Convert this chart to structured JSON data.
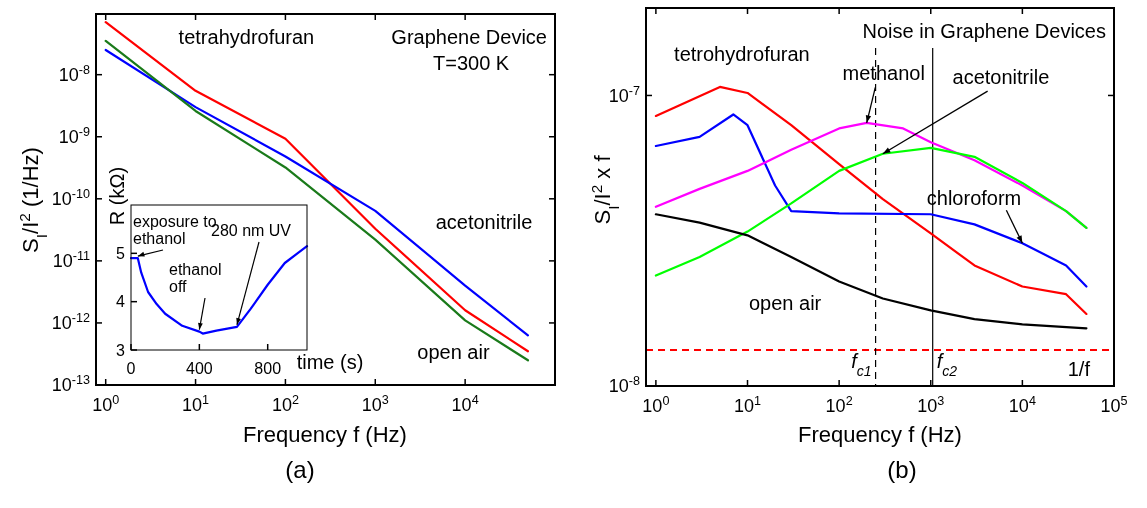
{
  "chart_data": [
    {
      "type": "line",
      "title": "Graphene Device",
      "subtitle": "T=300 K",
      "xlabel": "Frequency f (Hz)",
      "ylabel": "S$_{I}$/I$^{2}$  (1/Hz)",
      "log": "xy",
      "grid": false,
      "marker": "none",
      "line_style": "solid",
      "xlim": [
        0.78,
        100000
      ],
      "ylim": [
        1e-13,
        9.5e-08
      ],
      "xticks": [
        {
          "value": 1,
          "label": "10$^{0}$"
        },
        {
          "value": 10,
          "label": "10$^{1}$"
        },
        {
          "value": 100,
          "label": "10$^{2}$"
        },
        {
          "value": 1000,
          "label": "10$^{3}$"
        },
        {
          "value": 10000,
          "label": "10$^{4}$"
        }
      ],
      "yticks": [
        {
          "value": 1e-13,
          "label": "10$^{-13}$"
        },
        {
          "value": 1e-12,
          "label": "10$^{-12}$"
        },
        {
          "value": 1e-11,
          "label": "10$^{-11}$"
        },
        {
          "value": 1e-10,
          "label": "10$^{-10}$"
        },
        {
          "value": 1e-09,
          "label": "10$^{-9}$"
        },
        {
          "value": 1e-08,
          "label": "10$^{-8}$"
        }
      ],
      "x": [
        1,
        10,
        100,
        1000,
        10000,
        50000
      ],
      "series": [
        {
          "name": "tetrahydrofuran",
          "color": "#ff0000",
          "values": [
            7e-08,
            5.5e-09,
            9.3e-10,
            3.3e-11,
            1.6e-12,
            3.5e-13
          ]
        },
        {
          "name": "acetonitrile",
          "color": "#0000ff",
          "values": [
            2.5e-08,
            3e-09,
            4.8e-10,
            6.4e-11,
            4e-12,
            6.3e-13
          ]
        },
        {
          "name": "open air",
          "color": "#1a7a1a",
          "values": [
            3.5e-08,
            2.6e-09,
            3.2e-10,
            2.2e-11,
            1.1e-12,
            2.5e-13
          ]
        }
      ],
      "annotations": [
        "(a)"
      ]
    },
    {
      "type": "line",
      "xlabel": "time (s)",
      "ylabel": "R (kΩ)",
      "grid": false,
      "marker": "none",
      "line_style": "solid",
      "xlim": [
        0,
        1030
      ],
      "ylim": [
        3,
        6
      ],
      "xticks": [
        0,
        400,
        800
      ],
      "yticks": [
        3,
        4,
        5
      ],
      "x": [
        0,
        40,
        60,
        100,
        150,
        200,
        300,
        400,
        420,
        500,
        620,
        700,
        800,
        900,
        1030
      ],
      "series": [
        {
          "color": "#0000ff",
          "values": [
            4.9,
            4.9,
            4.6,
            4.2,
            3.95,
            3.75,
            3.5,
            3.38,
            3.34,
            3.4,
            3.48,
            3.85,
            4.35,
            4.8,
            5.15
          ]
        }
      ],
      "annotations": [
        {
          "text": "exposure to\nethanol",
          "x": 40,
          "y": 4.9
        },
        {
          "text": "ethanol\noff",
          "x": 400,
          "y": 3.38
        },
        {
          "text": "280 nm UV",
          "x": 620,
          "y": 3.48
        }
      ]
    },
    {
      "type": "line",
      "title": "Noise in Graphene Devices",
      "xlabel": "Frequency f (Hz)",
      "ylabel": "S$_{I}$/I$^{2}$ x f",
      "log": "xy",
      "grid": false,
      "marker": "none",
      "line_style": "solid",
      "xlim": [
        0.78,
        100000
      ],
      "ylim": [
        1e-08,
        2e-07
      ],
      "xticks": [
        {
          "value": 1,
          "label": "10$^{0}$"
        },
        {
          "value": 10,
          "label": "10$^{1}$"
        },
        {
          "value": 100,
          "label": "10$^{2}$"
        },
        {
          "value": 1000,
          "label": "10$^{3}$"
        },
        {
          "value": 10000,
          "label": "10$^{4}$"
        },
        {
          "value": 100000,
          "label": "10$^{5}$"
        }
      ],
      "yticks": [
        {
          "value": 1e-08,
          "label": "10$^{-8}$"
        },
        {
          "value": 1e-07,
          "label": "10$^{-7}$"
        }
      ],
      "series": [
        {
          "name": "tetrohydrofuran",
          "color": "#ff0000",
          "x": [
            1,
            5,
            10,
            30,
            100,
            300,
            1000,
            3000,
            10000,
            30000,
            50000
          ],
          "values": [
            8.5e-08,
            1.07e-07,
            1.02e-07,
            7.9e-08,
            5.8e-08,
            4.4e-08,
            3.35e-08,
            2.6e-08,
            2.2e-08,
            2.07e-08,
            1.77e-08
          ]
        },
        {
          "name": "chloroform",
          "color": "#0000ff",
          "x": [
            1,
            3,
            7,
            10,
            20,
            30,
            100,
            1000,
            3000,
            10000,
            30000,
            50000
          ],
          "values": [
            6.7e-08,
            7.2e-08,
            8.6e-08,
            7.9e-08,
            4.9e-08,
            4e-08,
            3.93e-08,
            3.9e-08,
            3.6e-08,
            3.1e-08,
            2.6e-08,
            2.2e-08
          ]
        },
        {
          "name": "methanol",
          "color": "#ff00ff",
          "x": [
            1,
            3,
            10,
            30,
            100,
            200,
            500,
            1000,
            3000,
            10000,
            30000,
            50000
          ],
          "values": [
            4.14e-08,
            4.77e-08,
            5.5e-08,
            6.5e-08,
            7.7e-08,
            8.05e-08,
            7.7e-08,
            6.9e-08,
            5.98e-08,
            4.9e-08,
            4e-08,
            3.5e-08
          ]
        },
        {
          "name": "acetonitrile",
          "color": "#00ff00",
          "x": [
            1,
            3,
            10,
            30,
            100,
            300,
            1000,
            3000,
            10000,
            30000,
            50000
          ],
          "values": [
            2.4e-08,
            2.78e-08,
            3.4e-08,
            4.25e-08,
            5.5e-08,
            6.3e-08,
            6.6e-08,
            6.15e-08,
            5e-08,
            4e-08,
            3.5e-08
          ]
        },
        {
          "name": "open air",
          "color": "#000000",
          "x": [
            1,
            3,
            10,
            30,
            100,
            300,
            1000,
            3000,
            10000,
            50000
          ],
          "values": [
            3.9e-08,
            3.65e-08,
            3.3e-08,
            2.78e-08,
            2.29e-08,
            2e-08,
            1.82e-08,
            1.7e-08,
            1.63e-08,
            1.58e-08
          ]
        }
      ],
      "ref_lines": [
        {
          "axis": "y",
          "value": 1.33e-08,
          "label": "1/f",
          "color": "#ff0000",
          "line_style": "dashed"
        },
        {
          "axis": "x",
          "value": 250,
          "label": "f$_{c1}$",
          "color": "#000000",
          "line_style": "dashed"
        },
        {
          "axis": "x",
          "value": 1050,
          "label": "f$_{c2}$",
          "color": "#000000",
          "line_style": "solid"
        }
      ],
      "annotations": [
        "(b)"
      ]
    }
  ]
}
